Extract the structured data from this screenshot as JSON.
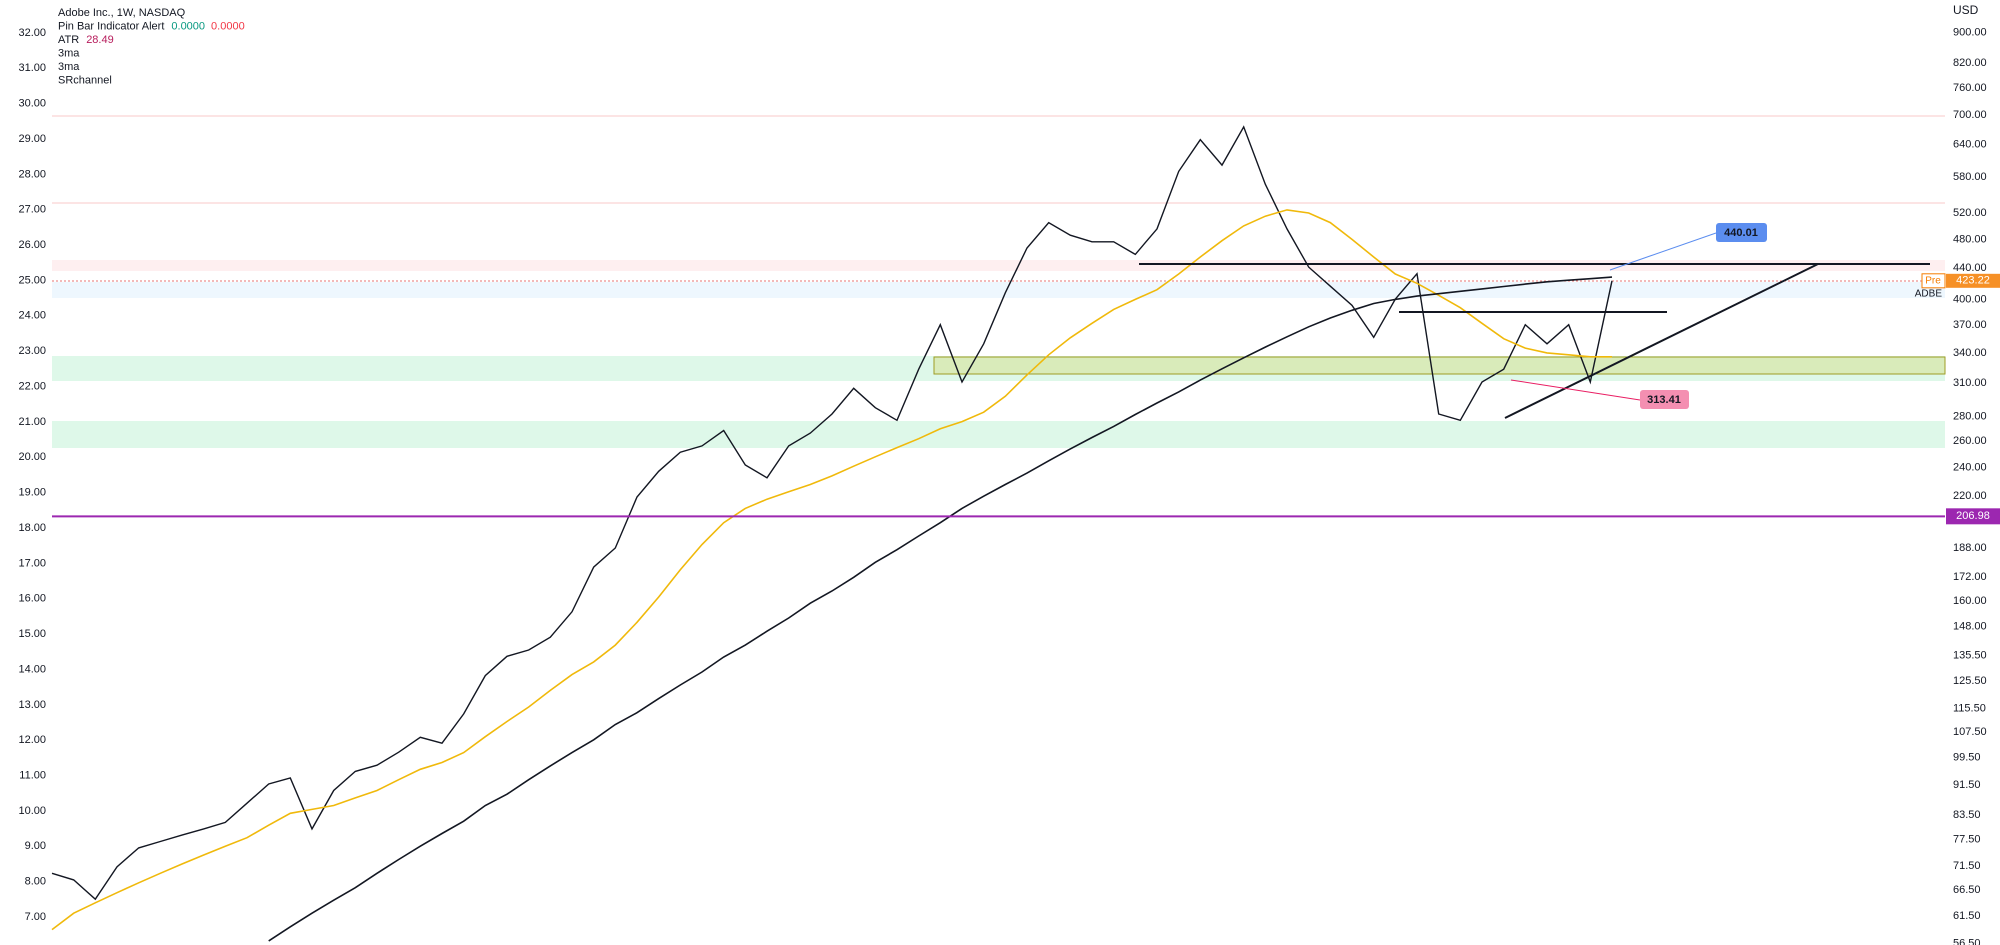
{
  "chart_data": {
    "type": "line",
    "title": "Adobe Inc., 1W, NASDAQ",
    "currency": "USD",
    "indicators": [
      {
        "name": "Pin Bar Indicator Alert",
        "readings": [
          "0.0000",
          "0.0000"
        ],
        "colors": [
          "#089981",
          "#f23645"
        ]
      },
      {
        "name": "ATR",
        "readings": [
          28.49
        ],
        "colors": [
          "#b71c5c"
        ]
      },
      {
        "name": "3ma"
      },
      {
        "name": "3ma"
      },
      {
        "name": "SRchannel"
      }
    ],
    "ylim": [
      6.21,
      32.93
    ],
    "yticks": [
      {
        "value": 7,
        "label": "7.00"
      },
      {
        "value": 8,
        "label": "8.00"
      },
      {
        "value": 9,
        "label": "9.00"
      },
      {
        "value": 10,
        "label": "10.00"
      },
      {
        "value": 11,
        "label": "11.00"
      },
      {
        "value": 12,
        "label": "12.00"
      },
      {
        "value": 13,
        "label": "13.00"
      },
      {
        "value": 14,
        "label": "14.00"
      },
      {
        "value": 15,
        "label": "15.00"
      },
      {
        "value": 16,
        "label": "16.00"
      },
      {
        "value": 17,
        "label": "17.00"
      },
      {
        "value": 18,
        "label": "18.00"
      },
      {
        "value": 19,
        "label": "19.00"
      },
      {
        "value": 20,
        "label": "20.00"
      },
      {
        "value": 21,
        "label": "21.00"
      },
      {
        "value": 22,
        "label": "22.00"
      },
      {
        "value": 23,
        "label": "23.00"
      },
      {
        "value": 24,
        "label": "24.00"
      },
      {
        "value": 25,
        "label": "25.00"
      },
      {
        "value": 26,
        "label": "26.00"
      },
      {
        "value": 27,
        "label": "27.00"
      },
      {
        "value": 28,
        "label": "28.00"
      },
      {
        "value": 29,
        "label": "29.00"
      },
      {
        "value": 30,
        "label": "30.00"
      },
      {
        "value": 31,
        "label": "31.00"
      },
      {
        "value": 32,
        "label": "32.00"
      }
    ],
    "y2_log": true,
    "y2lim": [
      56.3,
      993
    ],
    "y2ticks": [
      {
        "value": 900,
        "label": "900.00"
      },
      {
        "value": 820,
        "label": "820.00"
      },
      {
        "value": 760,
        "label": "760.00"
      },
      {
        "value": 700,
        "label": "700.00"
      },
      {
        "value": 640,
        "label": "640.00"
      },
      {
        "value": 580,
        "label": "580.00"
      },
      {
        "value": 520,
        "label": "520.00"
      },
      {
        "value": 480,
        "label": "480.00"
      },
      {
        "value": 440,
        "label": "440.00"
      },
      {
        "value": 400,
        "label": "400.00"
      },
      {
        "value": 370,
        "label": "370.00"
      },
      {
        "value": 340,
        "label": "340.00"
      },
      {
        "value": 310,
        "label": "310.00"
      },
      {
        "value": 280,
        "label": "280.00"
      },
      {
        "value": 260,
        "label": "260.00"
      },
      {
        "value": 240,
        "label": "240.00"
      },
      {
        "value": 220,
        "label": "220.00"
      },
      {
        "value": 188,
        "label": "188.00"
      },
      {
        "value": 172,
        "label": "172.00"
      },
      {
        "value": 160,
        "label": "160.00"
      },
      {
        "value": 148,
        "label": "148.00"
      },
      {
        "value": 135.5,
        "label": "135.50"
      },
      {
        "value": 125.5,
        "label": "125.50"
      },
      {
        "value": 115.5,
        "label": "115.50"
      },
      {
        "value": 107.5,
        "label": "107.50"
      },
      {
        "value": 99.5,
        "label": "99.50"
      },
      {
        "value": 91.5,
        "label": "91.50"
      },
      {
        "value": 83.5,
        "label": "83.50"
      },
      {
        "value": 77.5,
        "label": "77.50"
      },
      {
        "value": 71.5,
        "label": "71.50"
      },
      {
        "value": 66.5,
        "label": "66.50"
      },
      {
        "value": 61.5,
        "label": "61.50"
      },
      {
        "value": 56.5,
        "label": "56.50"
      }
    ],
    "series": [
      {
        "color": "#131722",
        "axis": "y2",
        "values": [
          70.0,
          68.6,
          64.7,
          71.4,
          75.6,
          77.1,
          78.6,
          80.1,
          81.7,
          86.6,
          91.8,
          93.5,
          80.1,
          90.0,
          95.4,
          97.2,
          101.1,
          105.8,
          103.9,
          113.6,
          127.6,
          135.3,
          137.9,
          143.4,
          154.9,
          177.4,
          188.0,
          219.5,
          237.3,
          251.5,
          256.3,
          268.6,
          241.9,
          232.7,
          256.3,
          266.5,
          282.4,
          305.3,
          287.9,
          277.1,
          323.6,
          370.4,
          311.2,
          349.5,
          408.1,
          467.5,
          504.9,
          486.1,
          476.5,
          476.5,
          458.6,
          495.5,
          590.1,
          649.6,
          601.5,
          675.5,
          567.6,
          495.5,
          441.2,
          416.3,
          392.9,
          356.5,
          400.4,
          432.5,
          282.4,
          277.1,
          311.2,
          323.6,
          370.4,
          349.5,
          370.4,
          311.2,
          423.2
        ]
      },
      {
        "color": "#f0b90b",
        "axis": "y2",
        "values": [
          59,
          62,
          64,
          66,
          68,
          70,
          72,
          74,
          76,
          78,
          81,
          84,
          85,
          86,
          88,
          90,
          93,
          96,
          98,
          101,
          106,
          111,
          116,
          122,
          128,
          133,
          140,
          150,
          162,
          176,
          190,
          203,
          212,
          218,
          223,
          228,
          234,
          241,
          248,
          255,
          262,
          270,
          276,
          284,
          298,
          318,
          338,
          356,
          372,
          388,
          400,
          412,
          432,
          455,
          478,
          500,
          515,
          525,
          520,
          505,
          480,
          455,
          432,
          420,
          405,
          390,
          372,
          355,
          345,
          340,
          338,
          336,
          336
        ]
      },
      {
        "color": "#131722",
        "axis": "y2",
        "values": [
          null,
          null,
          null,
          null,
          null,
          null,
          null,
          null,
          null,
          null,
          57,
          59.5,
          62,
          64.5,
          67,
          70,
          73,
          76,
          79,
          82,
          86,
          89,
          93,
          97,
          101,
          105,
          110,
          114,
          119,
          124,
          129,
          135,
          140,
          146,
          152,
          159,
          165,
          172,
          180,
          187,
          195,
          203,
          212,
          220,
          228,
          236,
          245,
          254,
          263,
          272,
          282,
          292,
          302,
          313,
          324,
          335,
          346,
          357,
          368,
          378,
          387,
          395,
          400,
          404,
          407,
          410,
          413,
          416,
          419,
          422,
          424,
          426,
          428
        ]
      }
    ],
    "price_line": {
      "value": 206.98,
      "label": "206.98",
      "color": "#9c27b0"
    },
    "last_price": {
      "session": "Pre",
      "value": 423.22,
      "ticker": "ADBE",
      "color": "#f57c00"
    },
    "annotations": [
      "440.01",
      "313.41"
    ]
  }
}
